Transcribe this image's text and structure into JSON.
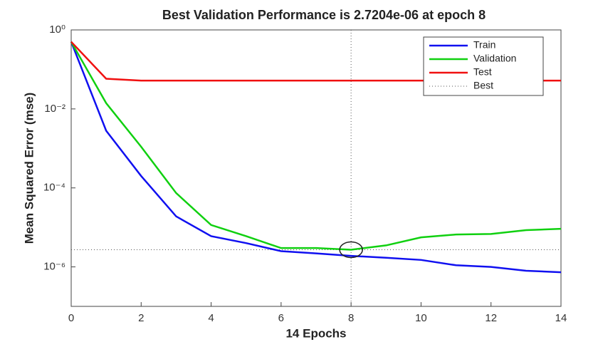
{
  "chart_data": {
    "type": "line",
    "title": "Best Validation Performance is 2.7204e-06 at epoch 8",
    "x_label": "14 Epochs",
    "y_label": "Mean Squared Error  (mse)",
    "x": [
      0,
      1,
      2,
      3,
      4,
      5,
      6,
      7,
      8,
      9,
      10,
      11,
      12,
      13,
      14
    ],
    "series": [
      {
        "name": "Train",
        "color": "#1010f0",
        "values": [
          0.5,
          0.0028,
          0.0002,
          1.9e-05,
          6e-06,
          4e-06,
          2.5e-06,
          2.2e-06,
          1.9e-06,
          1.7e-06,
          1.5e-06,
          1.1e-06,
          1e-06,
          8e-07,
          7.3e-07
        ]
      },
      {
        "name": "Validation",
        "color": "#10d010",
        "values": [
          0.5,
          0.014,
          0.0011,
          7.4e-05,
          1.15e-05,
          6e-06,
          3e-06,
          3e-06,
          2.7204e-06,
          3.5e-06,
          5.6e-06,
          6.6e-06,
          6.8e-06,
          8.5e-06,
          9.2e-06
        ]
      },
      {
        "name": "Test",
        "color": "#f01010",
        "values": [
          0.5,
          0.058,
          0.052,
          0.052,
          0.052,
          0.052,
          0.052,
          0.052,
          0.052,
          0.052,
          0.052,
          0.052,
          0.052,
          0.052,
          0.052
        ]
      }
    ],
    "best": {
      "name": "Best",
      "epoch": 8,
      "value": 2.7204e-06
    },
    "xlim": [
      0,
      14
    ],
    "xticks": [
      0,
      2,
      4,
      6,
      8,
      10,
      12,
      14
    ],
    "ylim": [
      1e-07,
      1
    ],
    "yticks": [
      {
        "value": 1,
        "label": "10⁰"
      },
      {
        "value": 0.01,
        "label": "10⁻²"
      },
      {
        "value": 0.0001,
        "label": "10⁻⁴"
      },
      {
        "value": 1e-06,
        "label": "10⁻⁶"
      }
    ],
    "ylog": true,
    "legend": "top-right"
  }
}
